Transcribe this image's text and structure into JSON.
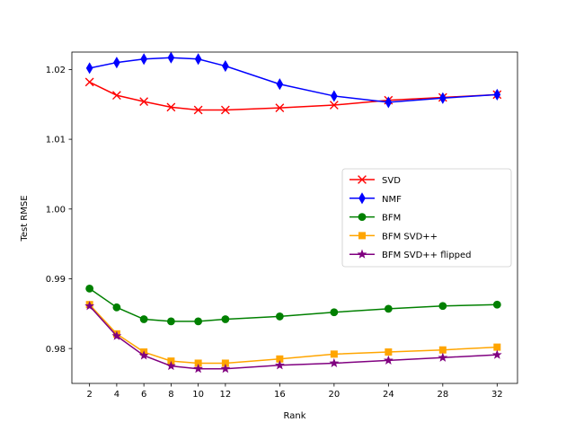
{
  "chart_data": {
    "type": "line",
    "title": "",
    "xlabel": "Rank",
    "ylabel": "Test RMSE",
    "x": [
      2,
      4,
      6,
      8,
      10,
      12,
      16,
      20,
      24,
      28,
      32
    ],
    "xlim": [
      0.7,
      33.5
    ],
    "ylim": [
      0.975,
      1.0225
    ],
    "yticks": [
      0.98,
      0.99,
      1.0,
      1.01,
      1.02
    ],
    "ytick_labels": [
      "0.98",
      "0.99",
      "1.00",
      "1.01",
      "1.02"
    ],
    "xtick_labels": [
      "2",
      "4",
      "6",
      "8",
      "10",
      "12",
      "16",
      "20",
      "24",
      "28",
      "32"
    ],
    "grid": false,
    "legend_position": "center-right",
    "series": [
      {
        "name": "SVD",
        "color": "#ff0000",
        "marker": "x",
        "values": [
          1.0182,
          1.0163,
          1.0154,
          1.0146,
          1.0142,
          1.0142,
          1.0145,
          1.0149,
          1.0156,
          1.016,
          1.0164
        ]
      },
      {
        "name": "NMF",
        "color": "#0000ff",
        "marker": "thin-diamond",
        "values": [
          1.0202,
          1.021,
          1.0215,
          1.0217,
          1.0215,
          1.0205,
          1.0179,
          1.0162,
          1.0153,
          1.0159,
          1.0164
        ]
      },
      {
        "name": "BFM",
        "color": "#008000",
        "marker": "circle",
        "values": [
          0.9886,
          0.9859,
          0.9842,
          0.9839,
          0.9839,
          0.9842,
          0.9846,
          0.9852,
          0.9857,
          0.9861,
          0.9863
        ]
      },
      {
        "name": "BFM SVD++",
        "color": "#ffa500",
        "marker": "square",
        "values": [
          0.9863,
          0.9821,
          0.9795,
          0.9782,
          0.9779,
          0.9779,
          0.9785,
          0.9792,
          0.9795,
          0.9798,
          0.9802
        ]
      },
      {
        "name": "BFM SVD++ flipped",
        "color": "#800080",
        "marker": "star",
        "values": [
          0.9861,
          0.9818,
          0.979,
          0.9775,
          0.9771,
          0.9771,
          0.9776,
          0.9779,
          0.9783,
          0.9787,
          0.9791
        ]
      }
    ]
  }
}
